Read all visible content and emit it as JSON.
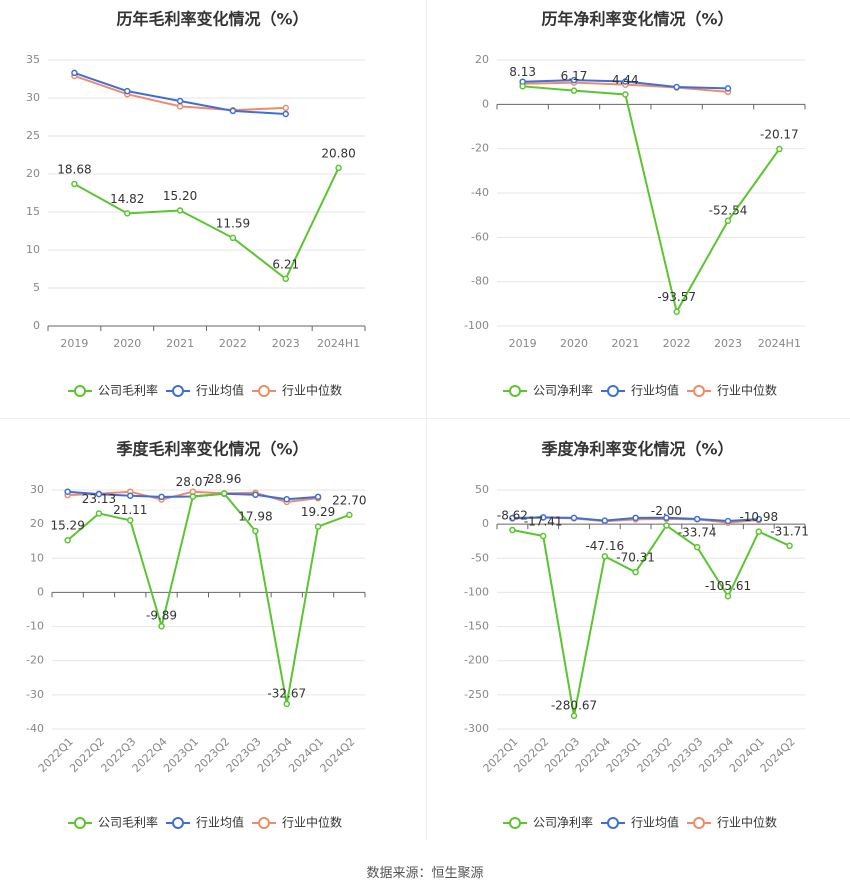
{
  "footer": "数据来源：恒生聚源",
  "colors": {
    "company": "#5bc530",
    "avg": "#3e6fd6",
    "median": "#ef8b68"
  },
  "chart_data": [
    {
      "type": "line",
      "title": "历年毛利率变化情况（%）",
      "categories": [
        "2019",
        "2020",
        "2021",
        "2022",
        "2023",
        "2024H1"
      ],
      "ylim": [
        0,
        35
      ],
      "yticks": [
        0,
        5,
        10,
        15,
        20,
        25,
        30,
        35
      ],
      "grid": true,
      "legend_placement": "bottom",
      "series": [
        {
          "name": "公司毛利率",
          "values": [
            18.68,
            14.82,
            15.2,
            11.59,
            6.21,
            20.8
          ],
          "labels": [
            "18.68",
            "14.82",
            "15.20",
            "11.59",
            "6.21",
            "20.80"
          ]
        },
        {
          "name": "行业均值",
          "values": [
            33.3,
            30.9,
            29.6,
            28.3,
            27.9,
            null
          ]
        },
        {
          "name": "行业中位数",
          "values": [
            32.9,
            30.5,
            28.9,
            28.4,
            28.7,
            null
          ]
        }
      ]
    },
    {
      "type": "line",
      "title": "历年净利率变化情况（%）",
      "categories": [
        "2019",
        "2020",
        "2021",
        "2022",
        "2023",
        "2024H1"
      ],
      "ylim": [
        -100,
        20
      ],
      "yticks": [
        -100,
        -80,
        -60,
        -40,
        -20,
        0,
        20
      ],
      "grid": true,
      "legend_placement": "bottom",
      "series": [
        {
          "name": "公司净利率",
          "values": [
            8.13,
            6.17,
            4.44,
            -93.57,
            -52.54,
            -20.17
          ],
          "labels": [
            "8.13",
            "6.17",
            "4.44",
            "-93.57",
            "-52.54",
            "-20.17"
          ]
        },
        {
          "name": "行业均值",
          "values": [
            10.2,
            10.9,
            10.3,
            7.8,
            7.2,
            null
          ]
        },
        {
          "name": "行业中位数",
          "values": [
            9.3,
            9.8,
            8.9,
            7.6,
            5.6,
            null
          ]
        }
      ]
    },
    {
      "type": "line",
      "title": "季度毛利率变化情况（%）",
      "categories": [
        "2022Q1",
        "2022Q2",
        "2022Q3",
        "2022Q4",
        "2023Q1",
        "2023Q2",
        "2023Q3",
        "2023Q4",
        "2024Q1",
        "2024Q2"
      ],
      "ylim": [
        -40,
        30
      ],
      "yticks": [
        -40,
        -30,
        -20,
        -10,
        0,
        10,
        20,
        30
      ],
      "grid": true,
      "legend_placement": "bottom",
      "series": [
        {
          "name": "公司毛利率",
          "values": [
            15.29,
            23.13,
            21.11,
            -9.89,
            28.07,
            28.96,
            17.98,
            -32.67,
            19.29,
            22.7
          ],
          "labels": [
            "15.29",
            "23.13",
            "21.11",
            "-9.89",
            "28.07",
            "28.96",
            "17.98",
            "-32.67",
            "19.29",
            "22.70"
          ]
        },
        {
          "name": "行业均值",
          "values": [
            29.5,
            28.8,
            28.3,
            28.0,
            28.1,
            28.9,
            28.6,
            27.3,
            28.0,
            null
          ]
        },
        {
          "name": "行业中位数",
          "values": [
            28.5,
            28.9,
            29.5,
            27.2,
            29.5,
            29.0,
            29.2,
            26.5,
            27.6,
            null
          ]
        }
      ]
    },
    {
      "type": "line",
      "title": "季度净利率变化情况（%）",
      "categories": [
        "2022Q1",
        "2022Q2",
        "2022Q3",
        "2022Q4",
        "2023Q1",
        "2023Q2",
        "2023Q3",
        "2023Q4",
        "2024Q1",
        "2024Q2"
      ],
      "ylim": [
        -300,
        50
      ],
      "yticks": [
        -300,
        -250,
        -200,
        -150,
        -100,
        -50,
        0,
        50
      ],
      "grid": true,
      "legend_placement": "bottom",
      "series": [
        {
          "name": "公司净利率",
          "values": [
            -8.62,
            -17.41,
            -280.67,
            -47.16,
            -70.31,
            -2.0,
            -33.74,
            -105.61,
            -10.98,
            -31.71
          ],
          "labels": [
            "-8.62",
            "-17.41",
            "-280.67",
            "-47.16",
            "-70.31",
            "-2.00",
            "-33.74",
            "-105.61",
            "-10.98",
            "-31.71"
          ]
        },
        {
          "name": "行业均值",
          "values": [
            9.0,
            10.0,
            9.2,
            5.1,
            9.2,
            9.3,
            7.6,
            4.6,
            7.4,
            null
          ]
        },
        {
          "name": "行业中位数",
          "values": [
            8.2,
            9.6,
            8.4,
            4.2,
            7.0,
            7.8,
            7.0,
            2.2,
            6.0,
            null
          ]
        }
      ]
    }
  ]
}
